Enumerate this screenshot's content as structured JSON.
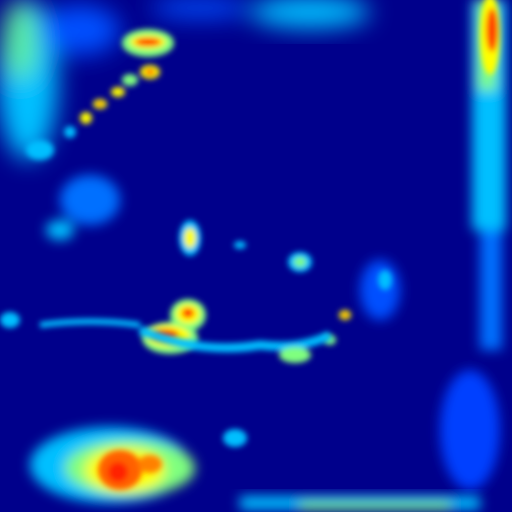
{
  "image": {
    "kind": "heatmap",
    "colormap": "jet",
    "colormap_stops": [
      "#00007f",
      "#0000ff",
      "#00bfff",
      "#7fff7f",
      "#ffff00",
      "#ff7f00",
      "#ff0000",
      "#7f0000"
    ],
    "background_color": "#00008b",
    "regions": [
      {
        "name": "top-left-glow",
        "level": 0.35
      },
      {
        "name": "top-edge-glow",
        "level": 0.3
      },
      {
        "name": "right-edge-strip",
        "level": 0.45
      },
      {
        "name": "right-edge-top-hotspot",
        "level": 0.9
      },
      {
        "name": "top-hotspot",
        "level": 0.9
      },
      {
        "name": "upper-left-dotted-streak",
        "level": 0.7
      },
      {
        "name": "center-small-blob",
        "level": 0.55
      },
      {
        "name": "center-right-blob",
        "level": 0.45
      },
      {
        "name": "left-center-hotspot",
        "level": 0.95
      },
      {
        "name": "lower-arc-streak",
        "level": 0.4
      },
      {
        "name": "bottom-left-hotspot",
        "level": 0.9
      },
      {
        "name": "bottom-edge-glow",
        "level": 0.3
      }
    ]
  }
}
